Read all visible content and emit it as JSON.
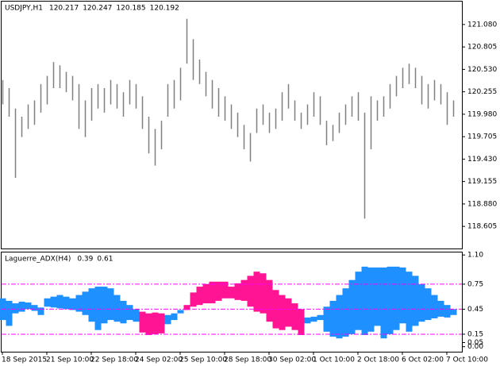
{
  "chart_data": [
    {
      "type": "hilo",
      "title": "USDJPY,H1",
      "quote": [
        120.217,
        120.247,
        120.185,
        120.192
      ],
      "color": "#808080",
      "high": [
        120.4,
        120.3,
        120.05,
        119.95,
        120.1,
        120.15,
        120.35,
        120.45,
        120.62,
        120.58,
        120.5,
        120.45,
        120.35,
        120.15,
        120.3,
        120.35,
        120.3,
        120.4,
        120.35,
        120.25,
        120.4,
        120.35,
        120.2,
        119.95,
        119.8,
        119.9,
        120.35,
        120.4,
        120.55,
        121.15,
        120.9,
        120.65,
        120.5,
        120.4,
        120.3,
        120.2,
        120.1,
        120.0,
        119.85,
        119.75,
        120.05,
        120.1,
        120.0,
        120.05,
        120.25,
        120.35,
        120.15,
        120.0,
        120.1,
        120.25,
        120.2,
        119.9,
        119.85,
        120.0,
        120.1,
        120.2,
        120.25,
        120.0,
        120.2,
        120.15,
        120.2,
        120.35,
        120.45,
        120.55,
        120.6,
        120.55,
        120.45,
        120.35,
        120.4,
        120.35,
        120.25,
        120.15
      ],
      "low": [
        120.1,
        119.95,
        119.2,
        119.7,
        119.8,
        119.85,
        120.0,
        120.1,
        120.3,
        120.3,
        120.25,
        120.15,
        119.8,
        119.7,
        119.9,
        120.05,
        120.0,
        120.1,
        120.05,
        119.95,
        120.1,
        120.05,
        119.8,
        119.5,
        119.35,
        119.55,
        119.95,
        120.05,
        120.15,
        120.6,
        120.4,
        120.35,
        120.2,
        120.05,
        119.95,
        119.9,
        119.8,
        119.7,
        119.55,
        119.4,
        119.75,
        119.85,
        119.75,
        119.8,
        119.9,
        120.05,
        119.9,
        119.8,
        119.85,
        119.95,
        119.85,
        119.6,
        119.65,
        119.75,
        119.85,
        119.95,
        119.9,
        118.7,
        119.55,
        119.9,
        119.95,
        120.05,
        120.2,
        120.3,
        120.35,
        120.3,
        120.1,
        120.05,
        120.15,
        120.1,
        119.85,
        119.95
      ],
      "ylim": [
        118.334,
        121.361
      ],
      "yticks": [
        {
          "value": 121.08,
          "label": "121.080"
        },
        {
          "value": 120.805,
          "label": "120.805"
        },
        {
          "value": 120.53,
          "label": "120.530"
        },
        {
          "value": 120.255,
          "label": "120.255"
        },
        {
          "value": 119.98,
          "label": "119.980"
        },
        {
          "value": 119.705,
          "label": "119.705"
        },
        {
          "value": 119.43,
          "label": "119.430"
        },
        {
          "value": 119.155,
          "label": "119.155"
        },
        {
          "value": 118.88,
          "label": "118.880"
        },
        {
          "value": 118.605,
          "label": "118.605"
        }
      ]
    },
    {
      "type": "band",
      "title": "Laguerre_ADX(H4)",
      "readings": [
        0.39,
        0.61
      ],
      "upper": [
        0.58,
        0.55,
        0.52,
        0.54,
        0.53,
        0.5,
        0.47,
        0.58,
        0.6,
        0.62,
        0.6,
        0.58,
        0.62,
        0.66,
        0.7,
        0.72,
        0.72,
        0.7,
        0.62,
        0.55,
        0.5,
        0.45,
        0.42,
        0.4,
        0.41,
        0.4,
        0.38,
        0.4,
        0.44,
        0.5,
        0.65,
        0.72,
        0.75,
        0.78,
        0.78,
        0.78,
        0.72,
        0.76,
        0.8,
        0.85,
        0.9,
        0.88,
        0.8,
        0.68,
        0.62,
        0.58,
        0.52,
        0.45,
        0.35,
        0.36,
        0.38,
        0.48,
        0.55,
        0.62,
        0.7,
        0.8,
        0.9,
        0.96,
        0.95,
        0.95,
        0.95,
        0.96,
        0.96,
        0.95,
        0.9,
        0.85,
        0.75,
        0.7,
        0.62,
        0.55,
        0.5,
        0.45
      ],
      "lower": [
        0.32,
        0.25,
        0.4,
        0.42,
        0.45,
        0.43,
        0.38,
        0.48,
        0.47,
        0.46,
        0.45,
        0.44,
        0.42,
        0.38,
        0.3,
        0.2,
        0.28,
        0.32,
        0.3,
        0.28,
        0.32,
        0.3,
        0.17,
        0.14,
        0.15,
        0.16,
        0.27,
        0.32,
        0.4,
        0.44,
        0.48,
        0.5,
        0.52,
        0.52,
        0.55,
        0.58,
        0.58,
        0.56,
        0.55,
        0.48,
        0.42,
        0.4,
        0.3,
        0.22,
        0.2,
        0.24,
        0.2,
        0.14,
        0.28,
        0.3,
        0.32,
        0.18,
        0.12,
        0.1,
        0.12,
        0.15,
        0.2,
        0.14,
        0.18,
        0.25,
        0.1,
        0.15,
        0.2,
        0.28,
        0.18,
        0.25,
        0.3,
        0.32,
        0.34,
        0.36,
        0.35,
        0.38
      ],
      "bar_colors": [
        "#1E90FF",
        "#1E90FF",
        "#1E90FF",
        "#1E90FF",
        "#1E90FF",
        "#1E90FF",
        "#1E90FF",
        "#1E90FF",
        "#1E90FF",
        "#1E90FF",
        "#1E90FF",
        "#1E90FF",
        "#1E90FF",
        "#1E90FF",
        "#1E90FF",
        "#1E90FF",
        "#1E90FF",
        "#1E90FF",
        "#1E90FF",
        "#1E90FF",
        "#1E90FF",
        "#1E90FF",
        "#FF1493",
        "#FF1493",
        "#FF1493",
        "#FF1493",
        "#1E90FF",
        "#1E90FF",
        "#1E90FF",
        "#FF1493",
        "#FF1493",
        "#FF1493",
        "#FF1493",
        "#FF1493",
        "#FF1493",
        "#FF1493",
        "#FF1493",
        "#FF1493",
        "#FF1493",
        "#FF1493",
        "#FF1493",
        "#FF1493",
        "#FF1493",
        "#FF1493",
        "#FF1493",
        "#FF1493",
        "#FF1493",
        "#FF1493",
        "#1E90FF",
        "#1E90FF",
        "#1E90FF",
        "#1E90FF",
        "#1E90FF",
        "#1E90FF",
        "#1E90FF",
        "#1E90FF",
        "#1E90FF",
        "#1E90FF",
        "#1E90FF",
        "#1E90FF",
        "#1E90FF",
        "#1E90FF",
        "#1E90FF",
        "#1E90FF",
        "#1E90FF",
        "#1E90FF",
        "#1E90FF",
        "#1E90FF",
        "#1E90FF",
        "#1E90FF",
        "#1E90FF",
        "#1E90FF"
      ],
      "levels": [
        0.75,
        0.45,
        0.15
      ],
      "level_color": "#FF00FF",
      "ylim": [
        -0.06,
        1.13
      ],
      "yticks": [
        {
          "value": 1.1,
          "label": "1.10"
        },
        0.75,
        0.45,
        0.15,
        0.05,
        {
          "value": 0,
          "label": "0.00"
        }
      ],
      "xticks": [
        {
          "value": 0,
          "label": "18 Sep 2015"
        },
        {
          "value": 7,
          "label": "21 Sep 10:00"
        },
        {
          "value": 14,
          "label": "22 Sep 18:00"
        },
        {
          "value": 21,
          "label": "24 Sep 02:00"
        },
        {
          "value": 28,
          "label": "25 Sep 10:00"
        },
        {
          "value": 35,
          "label": "28 Sep 18:00"
        },
        {
          "value": 42,
          "label": "30 Sep 02:00"
        },
        {
          "value": 49,
          "label": "1 Oct 10:00"
        },
        {
          "value": 56,
          "label": "2 Oct 18:00"
        },
        {
          "value": 63,
          "label": "6 Oct 02:00"
        },
        {
          "value": 70,
          "label": "7 Oct 10:00"
        }
      ]
    }
  ]
}
